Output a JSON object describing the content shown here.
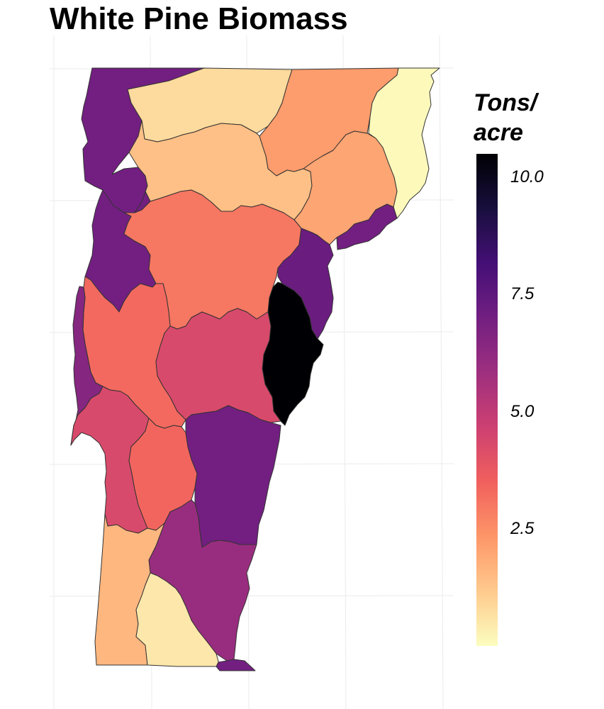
{
  "title": "White Pine Biomass",
  "legend": {
    "title_line1": "Tons/",
    "title_line2": "acre",
    "ticks": [
      {
        "label": "10.0",
        "value": 10.0
      },
      {
        "label": "7.5",
        "value": 7.5
      },
      {
        "label": "5.0",
        "value": 5.0
      },
      {
        "label": "2.5",
        "value": 2.5
      }
    ],
    "range": [
      0,
      10.5
    ],
    "palette": "magma",
    "colors": [
      "#FCFDBF",
      "#FECA8D",
      "#FD9668",
      "#F1605D",
      "#CD4071",
      "#9E2F7F",
      "#721F81",
      "#440F76",
      "#180F3D",
      "#000004"
    ]
  },
  "chart_data": {
    "type": "choropleth",
    "title": "White Pine Biomass",
    "legend_title": "Tons/ acre",
    "value_range": [
      0,
      10.5
    ],
    "regions": [
      {
        "id": "northwest",
        "value": 7.0
      },
      {
        "id": "north-central",
        "value": 0.8
      },
      {
        "id": "north-east-1",
        "value": 2.2
      },
      {
        "id": "northeast-corner",
        "value": 0.1
      },
      {
        "id": "north-central-2",
        "value": 1.4
      },
      {
        "id": "east-1",
        "value": 2.0
      },
      {
        "id": "northeast-small",
        "value": 7.0
      },
      {
        "id": "west-upper",
        "value": 7.0
      },
      {
        "id": "central-large",
        "value": 3.0
      },
      {
        "id": "east-central",
        "value": 7.2
      },
      {
        "id": "east-dark",
        "value": 10.5
      },
      {
        "id": "west-middle",
        "value": 3.3
      },
      {
        "id": "center-south",
        "value": 4.3
      },
      {
        "id": "west-lake",
        "value": 6.5
      },
      {
        "id": "southwest-middle",
        "value": 4.3
      },
      {
        "id": "south-central-west",
        "value": 3.4
      },
      {
        "id": "southeast-middle",
        "value": 7.0
      },
      {
        "id": "south-east-2",
        "value": 6.0
      },
      {
        "id": "southwest",
        "value": 1.6
      },
      {
        "id": "south-center",
        "value": 0.5
      },
      {
        "id": "south-tip",
        "value": 7.0
      }
    ]
  }
}
